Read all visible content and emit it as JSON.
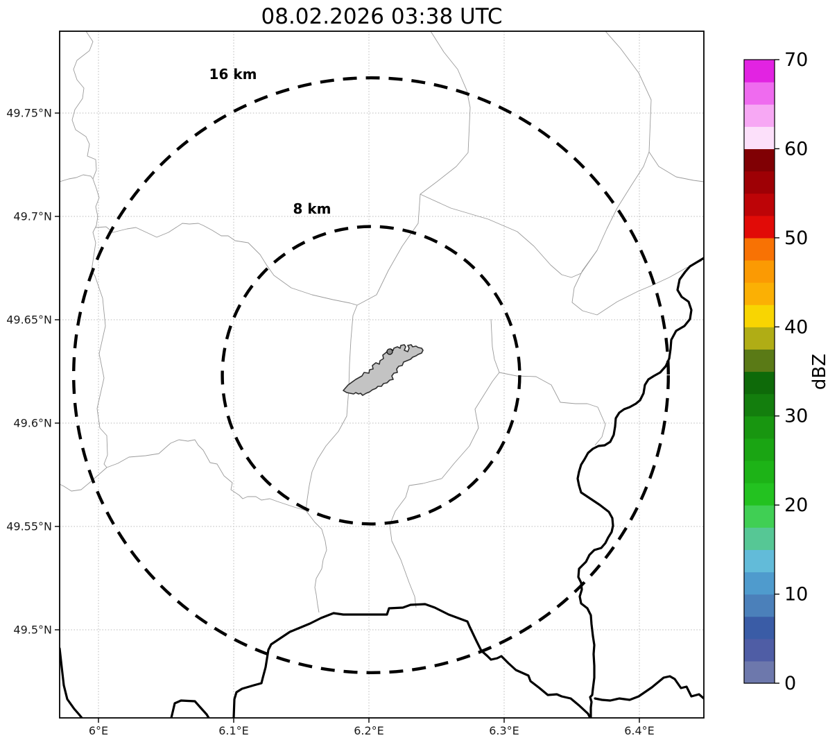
{
  "title": "08.02.2026 03:38 UTC",
  "map": {
    "lon_axis": {
      "ticks": [
        {
          "value": 6.0,
          "label": "6°E"
        },
        {
          "value": 6.1,
          "label": "6.1°E"
        },
        {
          "value": 6.2,
          "label": "6.2°E"
        },
        {
          "value": 6.3,
          "label": "6.3°E"
        },
        {
          "value": 6.4,
          "label": "6.4°E"
        }
      ]
    },
    "lat_axis": {
      "ticks": [
        {
          "value": 49.5,
          "label": "49.5°N"
        },
        {
          "value": 49.55,
          "label": "49.55°N"
        },
        {
          "value": 49.6,
          "label": "49.6°N"
        },
        {
          "value": 49.65,
          "label": "49.65°N"
        },
        {
          "value": 49.7,
          "label": "49.7°N"
        },
        {
          "value": 49.75,
          "label": "49.75°N"
        }
      ]
    },
    "range_rings": [
      {
        "radius_km": 8,
        "label": "8 km"
      },
      {
        "radius_km": 16,
        "label": "16 km"
      }
    ],
    "colors": {
      "ring": "#000000",
      "country_border": "#000000",
      "municipal_line": "#9a9a9a",
      "grid": "#b8b8b8",
      "airport_fill": "#c3c3c3",
      "airport_outline": "#2e2e2e"
    }
  },
  "colorbar": {
    "label": "dBZ",
    "min": 0,
    "max": 70,
    "band_step": 2.5,
    "tick_values": [
      0,
      10,
      20,
      30,
      40,
      50,
      60,
      70
    ],
    "tick_labels": [
      "0",
      "10",
      "20",
      "30",
      "40",
      "50",
      "60",
      "70"
    ],
    "band_colors_bottom_to_top": [
      "#6d78ac",
      "#4f5da5",
      "#3a5ca6",
      "#4b80ba",
      "#4f9bcd",
      "#62bbd9",
      "#56c795",
      "#40cf54",
      "#23c220",
      "#1db317",
      "#1aa513",
      "#189610",
      "#137e0d",
      "#0e6a09",
      "#5a7a16",
      "#b0ad15",
      "#f8d502",
      "#fbb004",
      "#fb9a03",
      "#f87204",
      "#e10b07",
      "#bd0407",
      "#9e0005",
      "#800004",
      "#fce0fa",
      "#f7a8f4",
      "#ef6bef",
      "#e223e2"
    ]
  }
}
